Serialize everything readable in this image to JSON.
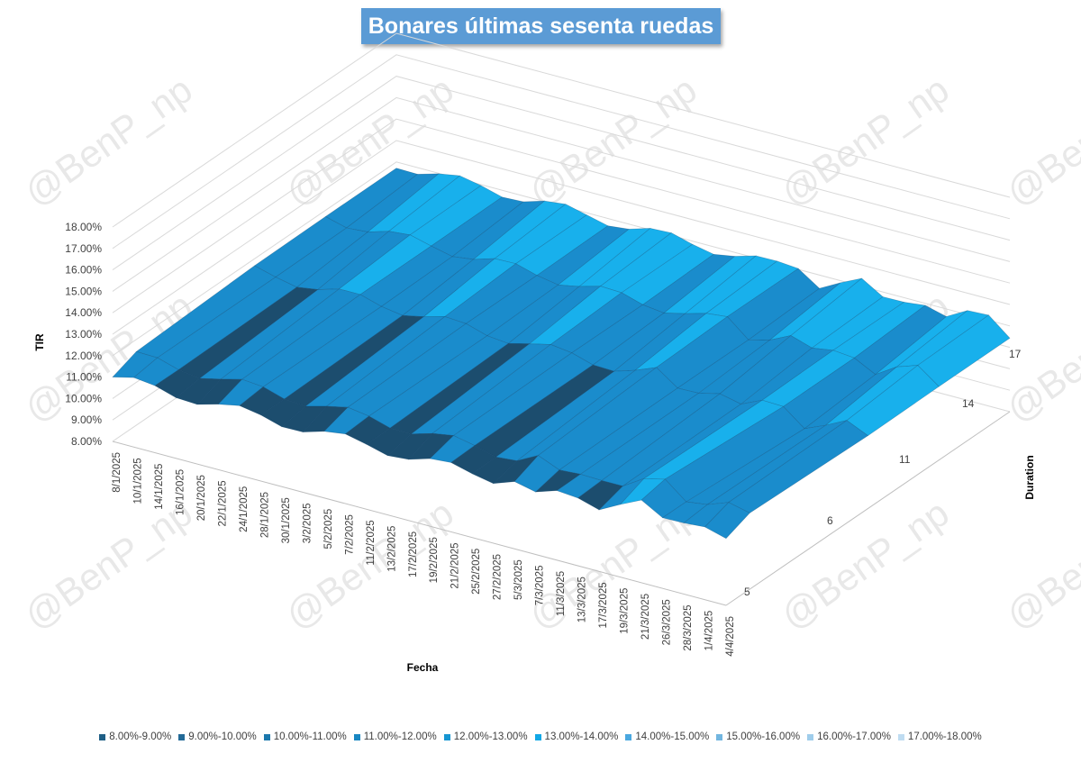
{
  "watermark": "@BenP_np",
  "chart_data": {
    "type": "surface",
    "title": "Bonares últimas sesenta ruedas",
    "xlabel": "Fecha",
    "ylabel": "Duration",
    "zlabel": "TIR",
    "x_tick_labels": [
      "8/1/2025",
      "10/1/2025",
      "14/1/2025",
      "16/1/2025",
      "20/1/2025",
      "22/1/2025",
      "24/1/2025",
      "28/1/2025",
      "30/1/2025",
      "3/2/2025",
      "5/2/2025",
      "7/2/2025",
      "11/2/2025",
      "13/2/2025",
      "17/2/2025",
      "19/2/2025",
      "21/2/2025",
      "25/2/2025",
      "27/2/2025",
      "5/3/2025",
      "7/3/2025",
      "11/3/2025",
      "13/3/2025",
      "17/3/2025",
      "19/3/2025",
      "21/3/2025",
      "26/3/2025",
      "28/3/2025",
      "1/4/2025",
      "4/4/2025"
    ],
    "y_tick_labels": [
      "5",
      "6",
      "11",
      "14",
      "17"
    ],
    "z_tick_labels": [
      "8.00%",
      "9.00%",
      "10.00%",
      "11.00%",
      "12.00%",
      "13.00%",
      "14.00%",
      "15.00%",
      "16.00%",
      "17.00%",
      "18.00%"
    ],
    "z_range": [
      8,
      18
    ],
    "legend": [
      {
        "label": "8.00%-9.00%",
        "color": "#1f5f86"
      },
      {
        "label": "9.00%-10.00%",
        "color": "#236a97"
      },
      {
        "label": "10.00%-11.00%",
        "color": "#1b78ad"
      },
      {
        "label": "11.00%-12.00%",
        "color": "#1987c2"
      },
      {
        "label": "12.00%-13.00%",
        "color": "#1696d2"
      },
      {
        "label": "13.00%-14.00%",
        "color": "#12a8e6"
      },
      {
        "label": "14.00%-15.00%",
        "color": "#4aa8e0"
      },
      {
        "label": "15.00%-16.00%",
        "color": "#72b6e0"
      },
      {
        "label": "16.00%-17.00%",
        "color": "#9fcdeb"
      },
      {
        "label": "17.00%-18.00%",
        "color": "#bfdcf1"
      }
    ],
    "colors": {
      "surface_dark": "#1c4d6e",
      "surface_mid": "#1a8ccc",
      "surface_light": "#18b0ec",
      "surface_pale": "#6cc0ee",
      "grid": "#d9d9d9",
      "axis_text": "#404040"
    }
  }
}
